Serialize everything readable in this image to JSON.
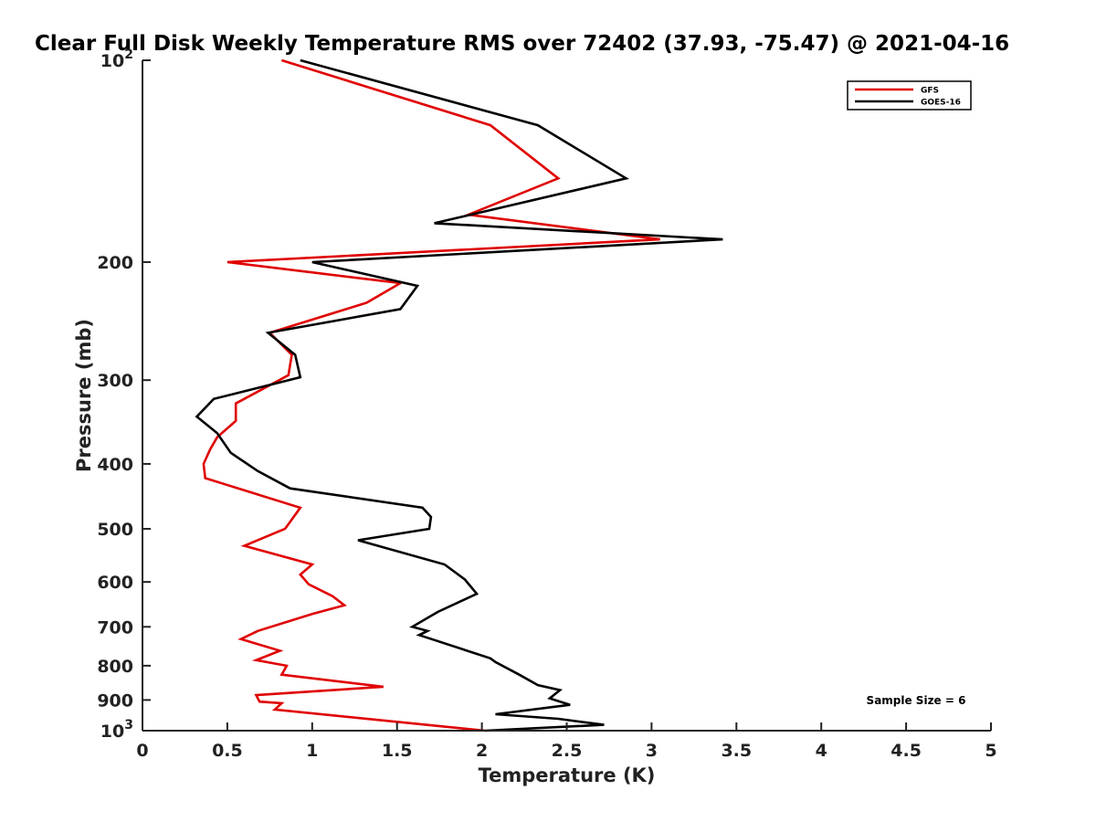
{
  "chart_data": {
    "type": "line",
    "title": "Clear Full Disk Weekly Temperature RMS over 72402 (37.93, -75.47) @ 2021-04-16",
    "xlabel": "Temperature (K)",
    "ylabel": "Pressure (mb)",
    "xlim": [
      0,
      5
    ],
    "ylim": [
      100,
      1000
    ],
    "y_scale": "log",
    "y_reversed": true,
    "x_ticks": [
      0,
      0.5,
      1,
      1.5,
      2,
      2.5,
      3,
      3.5,
      4,
      4.5,
      5
    ],
    "x_tick_labels": [
      "0",
      "0.5",
      "1",
      "1.5",
      "2",
      "2.5",
      "3",
      "3.5",
      "4",
      "4.5",
      "5"
    ],
    "y_ticks": [
      {
        "value": 100,
        "base": "10",
        "exp": "2"
      },
      {
        "value": 200,
        "label": "200"
      },
      {
        "value": 300,
        "label": "300"
      },
      {
        "value": 400,
        "label": "400"
      },
      {
        "value": 500,
        "label": "500"
      },
      {
        "value": 600,
        "label": "600"
      },
      {
        "value": 700,
        "label": "700"
      },
      {
        "value": 800,
        "label": "800"
      },
      {
        "value": 900,
        "label": "900"
      },
      {
        "value": 1000,
        "base": "10",
        "exp": "3"
      }
    ],
    "legend_position": "top-right",
    "series": [
      {
        "name": "GFS",
        "color": "#e00000",
        "points": [
          [
            0.82,
            100
          ],
          [
            2.05,
            125
          ],
          [
            2.45,
            150
          ],
          [
            1.92,
            170
          ],
          [
            3.05,
            185
          ],
          [
            0.5,
            200
          ],
          [
            1.52,
            215
          ],
          [
            1.32,
            230
          ],
          [
            0.75,
            255
          ],
          [
            0.88,
            275
          ],
          [
            0.86,
            295
          ],
          [
            0.55,
            325
          ],
          [
            0.55,
            345
          ],
          [
            0.44,
            365
          ],
          [
            0.4,
            380
          ],
          [
            0.36,
            400
          ],
          [
            0.37,
            420
          ],
          [
            0.93,
            465
          ],
          [
            0.84,
            500
          ],
          [
            0.6,
            530
          ],
          [
            1.0,
            565
          ],
          [
            0.93,
            585
          ],
          [
            0.98,
            605
          ],
          [
            1.12,
            630
          ],
          [
            1.19,
            650
          ],
          [
            1.0,
            670
          ],
          [
            0.68,
            710
          ],
          [
            0.58,
            730
          ],
          [
            0.81,
            760
          ],
          [
            0.67,
            785
          ],
          [
            0.85,
            800
          ],
          [
            0.82,
            825
          ],
          [
            1.42,
            860
          ],
          [
            0.67,
            885
          ],
          [
            0.69,
            905
          ],
          [
            0.82,
            910
          ],
          [
            0.78,
            930
          ],
          [
            2.02,
            1000
          ]
        ]
      },
      {
        "name": "GOES-16",
        "color": "#000000",
        "points": [
          [
            0.93,
            100
          ],
          [
            2.33,
            125
          ],
          [
            2.85,
            150
          ],
          [
            1.72,
            175
          ],
          [
            3.42,
            185
          ],
          [
            1.0,
            200
          ],
          [
            1.62,
            217
          ],
          [
            1.52,
            235
          ],
          [
            0.74,
            255
          ],
          [
            0.9,
            275
          ],
          [
            0.93,
            297
          ],
          [
            0.42,
            320
          ],
          [
            0.32,
            340
          ],
          [
            0.44,
            360
          ],
          [
            0.52,
            385
          ],
          [
            0.68,
            410
          ],
          [
            0.87,
            435
          ],
          [
            1.65,
            465
          ],
          [
            1.7,
            480
          ],
          [
            1.69,
            500
          ],
          [
            1.27,
            520
          ],
          [
            1.78,
            565
          ],
          [
            1.9,
            595
          ],
          [
            1.97,
            625
          ],
          [
            1.74,
            665
          ],
          [
            1.59,
            700
          ],
          [
            1.68,
            710
          ],
          [
            1.63,
            720
          ],
          [
            2.05,
            780
          ],
          [
            2.08,
            790
          ],
          [
            2.22,
            825
          ],
          [
            2.33,
            855
          ],
          [
            2.46,
            870
          ],
          [
            2.4,
            895
          ],
          [
            2.52,
            915
          ],
          [
            2.08,
            945
          ],
          [
            2.45,
            960
          ],
          [
            2.72,
            980
          ],
          [
            2.02,
            1000
          ]
        ]
      }
    ],
    "annotation": "Sample Size = 6"
  }
}
